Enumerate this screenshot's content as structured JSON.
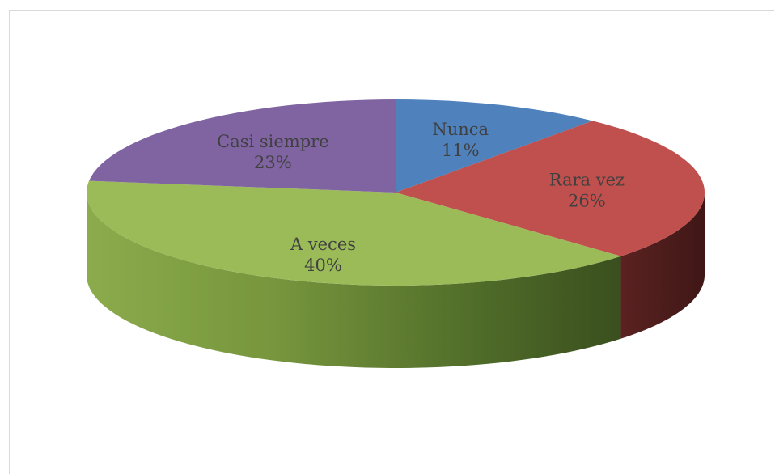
{
  "chart_data": {
    "type": "pie",
    "style": "3d",
    "start_angle_deg": 0,
    "direction": "clockwise",
    "slices": [
      {
        "label": "Nunca",
        "pct_label": "11%",
        "value": 11,
        "color": "#4f81bd",
        "side_color": "#2e4d73"
      },
      {
        "label": "Rara vez",
        "pct_label": "26%",
        "value": 26,
        "color": "#c0504d",
        "side_color": "#4a1d1c"
      },
      {
        "label": "A veces",
        "pct_label": "40%",
        "value": 40,
        "color": "#9bbb59",
        "side_color": "#5a7a2e"
      },
      {
        "label": "Casi siempre",
        "pct_label": "23%",
        "value": 23,
        "color": "#8064a2",
        "side_color": "#4b3a62"
      }
    ]
  }
}
